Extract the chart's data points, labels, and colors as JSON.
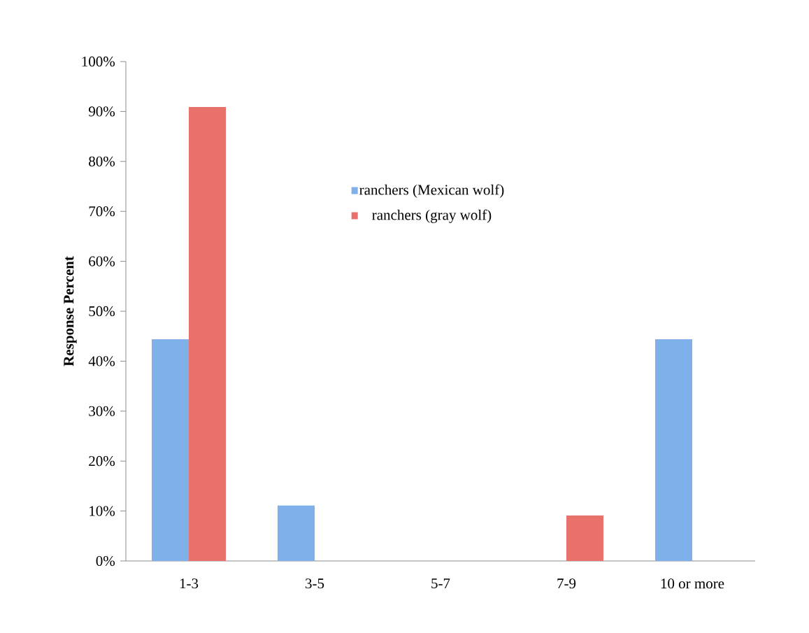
{
  "chart_data": {
    "type": "bar",
    "ylabel": "Response Percent",
    "categories": [
      "1-3",
      "3-5",
      "5-7",
      "7-9",
      "10 or more"
    ],
    "series": [
      {
        "name": "ranchers (Mexican wolf)",
        "color": "#7fb0ea",
        "values": [
          44.4,
          11.1,
          0,
          0,
          44.4
        ]
      },
      {
        "name": "ranchers (gray wolf)",
        "color": "#e9716b",
        "values": [
          90.9,
          0,
          0,
          9.1,
          0
        ]
      }
    ],
    "ylim": [
      0,
      100
    ],
    "yticks": [
      {
        "value": 0,
        "label": "0%"
      },
      {
        "value": 10,
        "label": "10%"
      },
      {
        "value": 20,
        "label": "20%"
      },
      {
        "value": 30,
        "label": "30%"
      },
      {
        "value": 40,
        "label": "40%"
      },
      {
        "value": 50,
        "label": "50%"
      },
      {
        "value": 60,
        "label": "60%"
      },
      {
        "value": 70,
        "label": "70%"
      },
      {
        "value": 80,
        "label": "80%"
      },
      {
        "value": 90,
        "label": "90%"
      },
      {
        "value": 100,
        "label": "100%"
      }
    ],
    "grid": false,
    "legend": "top"
  }
}
